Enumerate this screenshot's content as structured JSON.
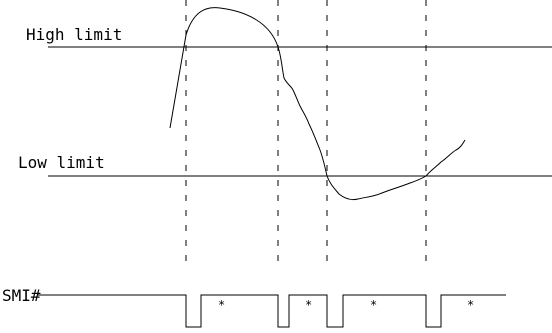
{
  "labels": {
    "high_limit": "High limit",
    "low_limit": "Low limit",
    "smi_signal": "SMI#"
  },
  "pulse_markers": [
    "*",
    "*",
    "*",
    "*"
  ],
  "colors": {
    "stroke": "#000000",
    "background": "#ffffff"
  }
}
